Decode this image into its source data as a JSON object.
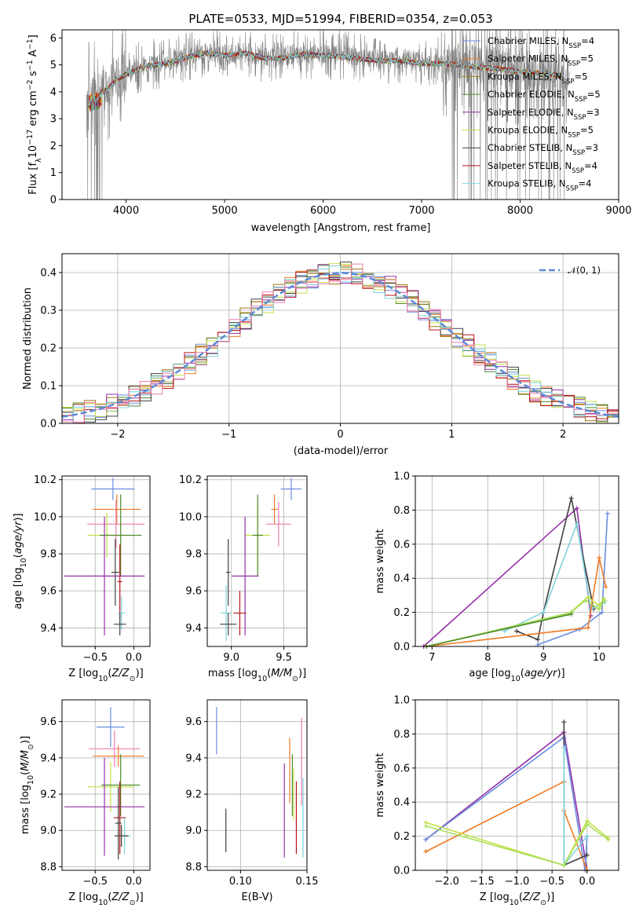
{
  "title": "PLATE=0533, MJD=51994, FIBERID=0354, z=0.053",
  "colors": {
    "Chabrier MILES": "#6a8ddf",
    "Salpeter MILES": "#ef7b26",
    "Kroupa MILES": "#a07610",
    "Chabrier ELODIE": "#4f8a2e",
    "Salpeter ELODIE": "#9530a8",
    "Kroupa ELODIE": "#c3e048",
    "Chabrier STELIB": "#404040",
    "Salpeter STELIB": "#b8141a",
    "Kroupa STELIB": "#7fd2db",
    "pink": "#ee7fb0",
    "lime": "#a8e05a",
    "data": "#808080",
    "gauss": "#5b8ad6"
  },
  "chart_data": [
    {
      "id": "spectrum",
      "type": "line",
      "title": "PLATE=0533, MJD=51994, FIBERID=0354, z=0.053",
      "xlabel": "wavelength [Angstrom, rest frame]",
      "ylabel": "Flux [f_λ 10^-17 erg cm^-2 s^-1 A^-1]",
      "xlim": [
        3350,
        9000
      ],
      "ylim": [
        0,
        6.3
      ],
      "xticks": [
        4000,
        5000,
        6000,
        7000,
        8000,
        9000
      ],
      "yticks": [
        0,
        1,
        2,
        3,
        4,
        5,
        6
      ],
      "legend_position": "upper right",
      "legend": [
        {
          "name": "Chabrier MILES",
          "nssp": "4"
        },
        {
          "name": "Salpeter MILES",
          "nssp": "5"
        },
        {
          "name": "Kroupa MILES",
          "nssp": "5"
        },
        {
          "name": "Chabrier ELODIE",
          "nssp": "5"
        },
        {
          "name": "Salpeter ELODIE",
          "nssp": "3"
        },
        {
          "name": "Kroupa ELODIE",
          "nssp": "5"
        },
        {
          "name": "Chabrier STELIB",
          "nssp": "3"
        },
        {
          "name": "Salpeter STELIB",
          "nssp": "4"
        },
        {
          "name": "Kroupa STELIB",
          "nssp": "4"
        }
      ],
      "continuum": [
        [
          3620,
          3.9
        ],
        [
          3700,
          4.0
        ],
        [
          3800,
          4.1
        ],
        [
          3900,
          4.5
        ],
        [
          4000,
          4.7
        ],
        [
          4200,
          5.0
        ],
        [
          4400,
          5.1
        ],
        [
          4600,
          5.3
        ],
        [
          4800,
          5.5
        ],
        [
          5000,
          5.4
        ],
        [
          5200,
          5.5
        ],
        [
          5400,
          5.3
        ],
        [
          5600,
          5.3
        ],
        [
          5800,
          5.45
        ],
        [
          6000,
          5.4
        ],
        [
          6200,
          5.35
        ],
        [
          6400,
          5.25
        ],
        [
          6600,
          5.2
        ],
        [
          6800,
          5.2
        ],
        [
          7000,
          5.1
        ],
        [
          7200,
          5.1
        ],
        [
          7400,
          5.05
        ],
        [
          7600,
          4.95
        ],
        [
          7800,
          4.9
        ],
        [
          8000,
          4.8
        ],
        [
          8200,
          4.75
        ],
        [
          8400,
          4.65
        ]
      ]
    },
    {
      "id": "residuals",
      "type": "step",
      "xlabel": "(data-model)/error",
      "ylabel": "Normed distribution",
      "xlim": [
        -2.5,
        2.5
      ],
      "ylim": [
        0,
        0.45
      ],
      "xticks": [
        -2,
        -1,
        0,
        1,
        2
      ],
      "yticks": [
        0.0,
        0.1,
        0.2,
        0.3,
        0.4
      ],
      "legend": "N(0,1)",
      "legend_position": "upper right",
      "bin_width": 0.1
    },
    {
      "id": "age-vs-Z",
      "type": "errorbar",
      "xlabel": "Z [log10(Z/Z⊙)]",
      "ylabel": "age  [log10(age/yr)]",
      "xlim": [
        -0.93,
        0.21
      ],
      "ylim": [
        9.3,
        10.22
      ],
      "xticks": [
        -0.5,
        0.0
      ],
      "yticks": [
        9.4,
        9.6,
        9.8,
        10.0,
        10.2
      ],
      "points": [
        {
          "color": "Chabrier MILES",
          "x": -0.27,
          "y": 10.15,
          "xerr": 0.28,
          "yerr": 0.06
        },
        {
          "color": "Salpeter MILES",
          "x": -0.22,
          "y": 10.04,
          "xerr": 0.31,
          "yerr": 0.08
        },
        {
          "color": "pink",
          "x": -0.23,
          "y": 9.96,
          "xerr": 0.37,
          "yerr": 0.13
        },
        {
          "color": "Kroupa ELODIE",
          "x": -0.35,
          "y": 9.9,
          "xerr": 0.25,
          "yerr": 0.12
        },
        {
          "color": "Chabrier ELODIE",
          "x": -0.17,
          "y": 9.9,
          "xerr": 0.27,
          "yerr": 0.22
        },
        {
          "color": "Chabrier STELIB",
          "x": -0.24,
          "y": 9.7,
          "xerr": 0.05,
          "yerr": 0.18
        },
        {
          "color": "Salpeter STELIB",
          "x": -0.18,
          "y": 9.65,
          "xerr": 0.03,
          "yerr": 0.2
        },
        {
          "color": "Salpeter ELODIE",
          "x": -0.38,
          "y": 9.68,
          "xerr": 0.52,
          "yerr": 0.32
        },
        {
          "color": "Kroupa STELIB",
          "x": -0.16,
          "y": 9.48,
          "xerr": 0.05,
          "yerr": 0.09
        },
        {
          "color": "Chabrier STELIB",
          "x": -0.18,
          "y": 9.42,
          "xerr": 0.08,
          "yerr": 0.06
        }
      ]
    },
    {
      "id": "age-vs-mass",
      "type": "errorbar",
      "xlabel": "mass [log10(M/M⊙)]",
      "ylabel": "",
      "xlim": [
        8.77,
        9.72
      ],
      "ylim": [
        9.3,
        10.22
      ],
      "xticks": [
        9.0,
        9.5
      ],
      "yticks": [
        9.4,
        9.6,
        9.8,
        10.0,
        10.2
      ],
      "points": [
        {
          "color": "Chabrier MILES",
          "x": 9.57,
          "y": 10.15,
          "xerr": 0.1,
          "yerr": 0.06
        },
        {
          "color": "Salpeter MILES",
          "x": 9.41,
          "y": 10.04,
          "xerr": 0.03,
          "yerr": 0.08
        },
        {
          "color": "pink",
          "x": 9.45,
          "y": 9.96,
          "xerr": 0.12,
          "yerr": 0.12
        },
        {
          "color": "Kroupa ELODIE",
          "x": 9.25,
          "y": 9.9,
          "xerr": 0.12,
          "yerr": 0.18
        },
        {
          "color": "Chabrier ELODIE",
          "x": 9.25,
          "y": 9.9,
          "xerr": 0.05,
          "yerr": 0.22
        },
        {
          "color": "Salpeter ELODIE",
          "x": 9.13,
          "y": 9.68,
          "xerr": 0.13,
          "yerr": 0.32
        },
        {
          "color": "Chabrier STELIB",
          "x": 8.97,
          "y": 9.7,
          "xerr": 0.02,
          "yerr": 0.18
        },
        {
          "color": "Salpeter STELIB",
          "x": 9.08,
          "y": 9.48,
          "xerr": 0.06,
          "yerr": 0.12
        },
        {
          "color": "Kroupa STELIB",
          "x": 8.95,
          "y": 9.48,
          "xerr": 0.05,
          "yerr": 0.15
        },
        {
          "color": "Chabrier STELIB",
          "x": 8.97,
          "y": 9.42,
          "xerr": 0.08,
          "yerr": 0.06
        }
      ]
    },
    {
      "id": "weight-vs-age",
      "type": "line",
      "xlabel": "age  [log10(age/yr)]",
      "ylabel": "mass weight",
      "xlim": [
        6.7,
        10.35
      ],
      "ylim": [
        0.0,
        1.0
      ],
      "xticks": [
        7,
        8,
        9,
        10
      ],
      "yticks": [
        0.0,
        0.2,
        0.4,
        0.6,
        0.8,
        1.0
      ],
      "grid": true,
      "series": [
        {
          "color": "Salpeter ELODIE",
          "points": [
            [
              6.85,
              0.0
            ],
            [
              9.6,
              0.81
            ],
            [
              9.85,
              0.18
            ]
          ]
        },
        {
          "color": "Chabrier STELIB",
          "points": [
            [
              8.52,
              0.09
            ],
            [
              8.9,
              0.04
            ],
            [
              9.0,
              0.2
            ],
            [
              9.5,
              0.87
            ],
            [
              9.9,
              0.22
            ]
          ]
        },
        {
          "color": "Kroupa STELIB",
          "points": [
            [
              8.3,
              0.09
            ],
            [
              9.0,
              0.2
            ],
            [
              9.6,
              0.72
            ],
            [
              9.85,
              0.22
            ],
            [
              10.1,
              0.26
            ]
          ]
        },
        {
          "color": "Chabrier MILES",
          "points": [
            [
              8.9,
              0.01
            ],
            [
              9.65,
              0.1
            ],
            [
              10.05,
              0.2
            ],
            [
              10.15,
              0.78
            ]
          ]
        },
        {
          "color": "Salpeter MILES",
          "points": [
            [
              6.9,
              0.0
            ],
            [
              9.8,
              0.11
            ],
            [
              10.0,
              0.52
            ],
            [
              10.12,
              0.35
            ]
          ]
        },
        {
          "color": "Kroupa ELODIE",
          "points": [
            [
              6.9,
              0.0
            ],
            [
              9.45,
              0.19
            ],
            [
              9.8,
              0.29
            ],
            [
              10.0,
              0.24
            ],
            [
              10.08,
              0.28
            ]
          ]
        },
        {
          "color": "lime",
          "points": [
            [
              6.9,
              0.0
            ],
            [
              9.5,
              0.2
            ],
            [
              9.75,
              0.27
            ],
            [
              10.0,
              0.22
            ],
            [
              10.1,
              0.27
            ]
          ]
        },
        {
          "color": "Chabrier ELODIE",
          "points": [
            [
              6.9,
              0.0
            ],
            [
              9.5,
              0.19
            ]
          ]
        }
      ]
    },
    {
      "id": "mass-vs-Z",
      "type": "errorbar",
      "xlabel": "Z [log10(Z/Z⊙)]",
      "ylabel": "mass [log10(M/M⊙)]",
      "xlim": [
        -0.93,
        0.21
      ],
      "ylim": [
        8.78,
        9.72
      ],
      "xticks": [
        -0.5,
        0.0
      ],
      "yticks": [
        8.8,
        9.0,
        9.2,
        9.4,
        9.6
      ],
      "points": [
        {
          "color": "Chabrier MILES",
          "x": -0.3,
          "y": 9.57,
          "xerr": 0.18,
          "yerr": 0.11
        },
        {
          "color": "pink",
          "x": -0.25,
          "y": 9.45,
          "xerr": 0.33,
          "yerr": 0.1
        },
        {
          "color": "Salpeter MILES",
          "x": -0.2,
          "y": 9.41,
          "xerr": 0.33,
          "yerr": 0.06
        },
        {
          "color": "Kroupa ELODIE",
          "x": -0.3,
          "y": 9.24,
          "xerr": 0.3,
          "yerr": 0.14
        },
        {
          "color": "Chabrier ELODIE",
          "x": -0.17,
          "y": 9.25,
          "xerr": 0.25,
          "yerr": 0.17
        },
        {
          "color": "Salpeter ELODIE",
          "x": -0.38,
          "y": 9.13,
          "xerr": 0.52,
          "yerr": 0.27
        },
        {
          "color": "Salpeter STELIB",
          "x": -0.18,
          "y": 9.07,
          "xerr": 0.08,
          "yerr": 0.2
        },
        {
          "color": "Chabrier STELIB",
          "x": -0.2,
          "y": 9.04,
          "xerr": 0.04,
          "yerr": 0.2
        },
        {
          "color": "Kroupa STELIB",
          "x": -0.12,
          "y": 8.97,
          "xerr": 0.08,
          "yerr": 0.1
        },
        {
          "color": "Chabrier STELIB",
          "x": -0.16,
          "y": 8.97,
          "xerr": 0.09,
          "yerr": 0.06
        }
      ]
    },
    {
      "id": "mass-vs-ebv",
      "type": "errorbar",
      "xlabel": "E(B-V)",
      "ylabel": "",
      "xlim": [
        0.075,
        0.15
      ],
      "ylim": [
        8.78,
        9.72
      ],
      "xticks": [
        0.1,
        0.15
      ],
      "yticks": [
        8.8,
        9.0,
        9.2,
        9.4,
        9.6
      ],
      "points": [
        {
          "color": "Chabrier MILES",
          "x": 0.082,
          "y": 9.55,
          "xerr": 0.0,
          "yerr": 0.13
        },
        {
          "color": "Chabrier STELIB",
          "x": 0.089,
          "y": 9.0,
          "xerr": 0.0,
          "yerr": 0.12
        },
        {
          "color": "Salpeter ELODIE",
          "x": 0.133,
          "y": 9.11,
          "xerr": 0.0,
          "yerr": 0.26
        },
        {
          "color": "Salpeter MILES",
          "x": 0.137,
          "y": 9.33,
          "xerr": 0.0,
          "yerr": 0.18
        },
        {
          "color": "Chabrier ELODIE",
          "x": 0.139,
          "y": 9.25,
          "xerr": 0.0,
          "yerr": 0.17
        },
        {
          "color": "Kroupa ELODIE",
          "x": 0.14,
          "y": 9.2,
          "xerr": 0.0,
          "yerr": 0.14
        },
        {
          "color": "Salpeter STELIB",
          "x": 0.142,
          "y": 9.07,
          "xerr": 0.0,
          "yerr": 0.2
        },
        {
          "color": "pink",
          "x": 0.146,
          "y": 9.38,
          "xerr": 0.0,
          "yerr": 0.24
        },
        {
          "color": "Kroupa STELIB",
          "x": 0.147,
          "y": 9.07,
          "xerr": 0.0,
          "yerr": 0.22
        }
      ]
    },
    {
      "id": "weight-vs-Z",
      "type": "line",
      "xlabel": "Z [log10(Z/Z⊙)]",
      "ylabel": "mass weight",
      "xlim": [
        -2.45,
        0.45
      ],
      "ylim": [
        0.0,
        1.0
      ],
      "xticks": [
        -2.0,
        -1.5,
        -1.0,
        -0.5,
        0.0
      ],
      "yticks": [
        0.0,
        0.2,
        0.4,
        0.6,
        0.8,
        1.0
      ],
      "grid": true,
      "series": [
        {
          "color": "Salpeter ELODIE",
          "points": [
            [
              -2.3,
              0.18
            ],
            [
              -0.33,
              0.81
            ],
            [
              0.0,
              0.0
            ]
          ]
        },
        {
          "color": "Chabrier MILES",
          "points": [
            [
              -2.3,
              0.18
            ],
            [
              -0.33,
              0.78
            ],
            [
              -0.03,
              0.0
            ],
            [
              0.0,
              0.2
            ]
          ]
        },
        {
          "color": "Salpeter MILES",
          "points": [
            [
              -2.3,
              0.11
            ],
            [
              -0.33,
              0.52
            ],
            [
              -0.33,
              0.35
            ],
            [
              0.0,
              0.0
            ]
          ]
        },
        {
          "color": "Chabrier STELIB",
          "points": [
            [
              -0.33,
              0.87
            ],
            [
              -0.33,
              0.03
            ],
            [
              0.0,
              0.09
            ]
          ]
        },
        {
          "color": "Kroupa STELIB",
          "points": [
            [
              -0.33,
              0.72
            ],
            [
              -0.33,
              0.03
            ],
            [
              0.0,
              0.2
            ]
          ]
        },
        {
          "color": "Kroupa ELODIE",
          "points": [
            [
              -2.3,
              0.28
            ],
            [
              -0.33,
              0.03
            ],
            [
              0.0,
              0.29
            ],
            [
              0.3,
              0.19
            ]
          ]
        },
        {
          "color": "lime",
          "points": [
            [
              -2.3,
              0.26
            ],
            [
              -0.33,
              0.03
            ],
            [
              0.0,
              0.27
            ],
            [
              0.3,
              0.18
            ]
          ]
        }
      ]
    }
  ],
  "residual_series": [
    {
      "color": "Chabrier MILES",
      "seed": 11
    },
    {
      "color": "Salpeter MILES",
      "seed": 23
    },
    {
      "color": "Kroupa MILES",
      "seed": 37
    },
    {
      "color": "Chabrier ELODIE",
      "seed": 41
    },
    {
      "color": "Salpeter ELODIE",
      "seed": 53
    },
    {
      "color": "Kroupa ELODIE",
      "seed": 67
    },
    {
      "color": "Chabrier STELIB",
      "seed": 71
    },
    {
      "color": "Salpeter STELIB",
      "seed": 83
    },
    {
      "color": "Kroupa STELIB",
      "seed": 97
    },
    {
      "color": "pink",
      "seed": 101
    }
  ]
}
